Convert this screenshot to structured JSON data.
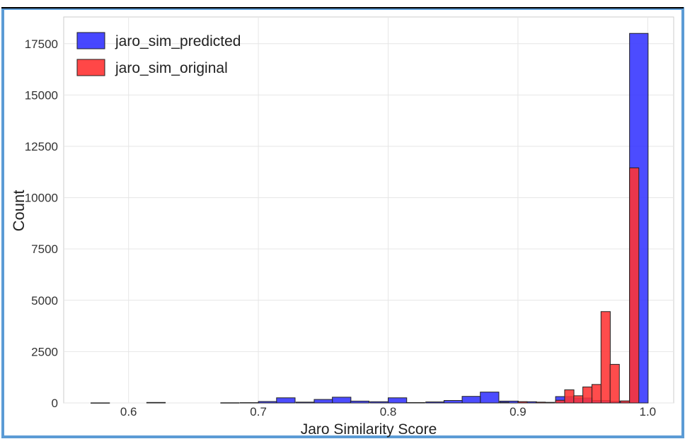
{
  "chart_data": {
    "type": "bar",
    "title": "",
    "xlabel": "Jaro Similarity Score",
    "ylabel": "Count",
    "xlim": [
      0.55,
      1.02
    ],
    "ylim": [
      0,
      18800
    ],
    "x_ticks": [
      "0.6",
      "0.7",
      "0.8",
      "0.9",
      "1.0"
    ],
    "y_ticks": [
      "0",
      "2500",
      "5000",
      "7500",
      "10000",
      "12500",
      "15000",
      "17500"
    ],
    "grid": true,
    "legend_position": "top-left",
    "bin_width": 0.0143,
    "series": [
      {
        "name": "jaro_sim_predicted",
        "color": "#3333ff",
        "bins": [
          {
            "x": 0.571,
            "count": 5
          },
          {
            "x": 0.614,
            "count": 25
          },
          {
            "x": 0.671,
            "count": 10
          },
          {
            "x": 0.686,
            "count": 15
          },
          {
            "x": 0.7,
            "count": 70
          },
          {
            "x": 0.714,
            "count": 250
          },
          {
            "x": 0.729,
            "count": 40
          },
          {
            "x": 0.743,
            "count": 170
          },
          {
            "x": 0.757,
            "count": 280
          },
          {
            "x": 0.771,
            "count": 90
          },
          {
            "x": 0.786,
            "count": 60
          },
          {
            "x": 0.8,
            "count": 250
          },
          {
            "x": 0.814,
            "count": 20
          },
          {
            "x": 0.829,
            "count": 50
          },
          {
            "x": 0.843,
            "count": 120
          },
          {
            "x": 0.857,
            "count": 320
          },
          {
            "x": 0.871,
            "count": 530
          },
          {
            "x": 0.886,
            "count": 90
          },
          {
            "x": 0.9,
            "count": 60
          },
          {
            "x": 0.914,
            "count": 30
          },
          {
            "x": 0.929,
            "count": 310
          },
          {
            "x": 0.943,
            "count": 240
          },
          {
            "x": 0.957,
            "count": 120
          },
          {
            "x": 0.971,
            "count": 80
          },
          {
            "x": 0.986,
            "count": 18000
          }
        ]
      },
      {
        "name": "jaro_sim_original",
        "color": "#ff3333",
        "bins": [
          {
            "x": 0.886,
            "count": 30
          },
          {
            "x": 0.9,
            "count": 60
          },
          {
            "x": 0.914,
            "count": 40
          },
          {
            "x": 0.929,
            "count": 130
          },
          {
            "x": 0.936,
            "count": 640
          },
          {
            "x": 0.943,
            "count": 350
          },
          {
            "x": 0.95,
            "count": 780
          },
          {
            "x": 0.957,
            "count": 900
          },
          {
            "x": 0.964,
            "count": 4450
          },
          {
            "x": 0.971,
            "count": 1880
          },
          {
            "x": 0.979,
            "count": 100
          },
          {
            "x": 0.986,
            "count": 11450
          }
        ]
      }
    ]
  }
}
